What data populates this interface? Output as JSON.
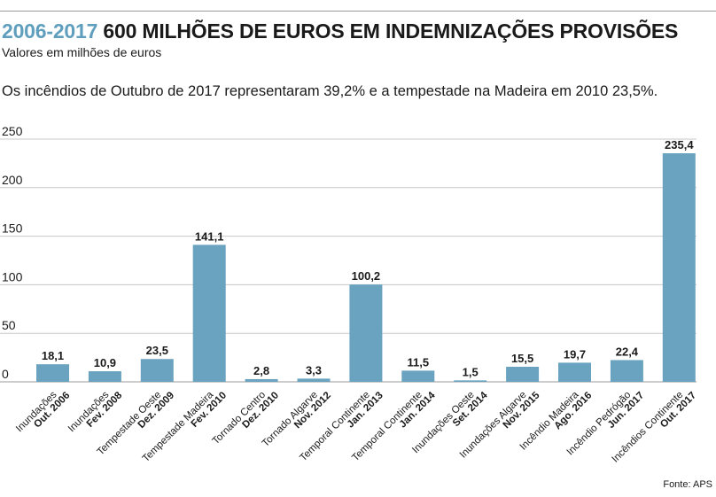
{
  "header": {
    "title_accent": "2006-2017",
    "title_main": "600 MILHÕES DE EUROS EM INDEMNIZAÇÕES PROVISÕES",
    "subtitle": "Valores em milhões de euros",
    "headline": "Os incêndios de Outubro de 2017 representaram 39,2% e a tempestade na Madeira em 2010 23,5%.",
    "source": "Fonte: APS"
  },
  "colors": {
    "bar": "#6aa3c0",
    "accent": "#5f9fbd",
    "grid": "#c8c8c8"
  },
  "chart_data": {
    "type": "bar",
    "title": "600 MILHÕES DE EUROS EM INDEMNIZAÇÕES PROVISÕES",
    "ylim": [
      0,
      250
    ],
    "yticks": [
      "0",
      "50",
      "100",
      "150",
      "200",
      "250"
    ],
    "grid": true,
    "categories": [
      {
        "name": "Inundações",
        "date": "Out. 2006"
      },
      {
        "name": "Inundações",
        "date": "Fev. 2008"
      },
      {
        "name": "Tempestade Oeste",
        "date": "Dez. 2009"
      },
      {
        "name": "Tempestade Madeira",
        "date": "Fev. 2010"
      },
      {
        "name": "Tornado Centro",
        "date": "Dez. 2010"
      },
      {
        "name": "Tornado Algarve",
        "date": "Nov. 2012"
      },
      {
        "name": "Temporal Continente",
        "date": "Jan. 2013"
      },
      {
        "name": "Temporal Continente",
        "date": "Jan. 2014"
      },
      {
        "name": "Inundações Oeste",
        "date": "Set. 2014"
      },
      {
        "name": "Inundações Algarve",
        "date": "Nov. 2015"
      },
      {
        "name": "Incêndio Madeira",
        "date": "Ago. 2016"
      },
      {
        "name": "Incêndio Pedrógão",
        "date": "Jun. 2017"
      },
      {
        "name": "Incêndios Continente",
        "date": "Out. 2017"
      }
    ],
    "values": [
      18.1,
      10.9,
      23.5,
      141.1,
      2.8,
      3.3,
      100.2,
      11.5,
      1.5,
      15.5,
      19.7,
      22.4,
      235.4
    ],
    "value_labels": [
      "18,1",
      "10,9",
      "23,5",
      "141,1",
      "2,8",
      "3,3",
      "100,2",
      "11,5",
      "1,5",
      "15,5",
      "19,7",
      "22,4",
      "235,4"
    ]
  }
}
